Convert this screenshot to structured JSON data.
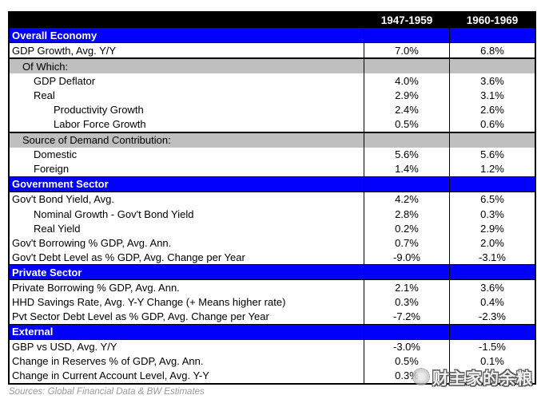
{
  "colors": {
    "column_header_bg": "#000000",
    "column_header_text": "#FFFFFF",
    "section_header_bg": "#0000FC",
    "section_header_text": "#FFFFFF",
    "subheader_bg": "#BFBFBF",
    "data_text": "#000000",
    "source_text": "#9A9A9A"
  },
  "source_note": "Sources: Global Financial Data & BW Estimates",
  "watermark": {
    "text": "财主家的余粮"
  },
  "chart_data": {
    "type": "table",
    "title": "",
    "columns": [
      "1947-1959",
      "1960-1969"
    ],
    "rows": [
      {
        "type": "section",
        "label": "Overall Economy",
        "indent": 0,
        "values": [
          "",
          ""
        ]
      },
      {
        "type": "data",
        "label": "GDP Growth, Avg. Y/Y",
        "indent": 0,
        "values": [
          "7.0%",
          "6.8%"
        ]
      },
      {
        "type": "subheader",
        "label": "Of Which:",
        "indent": 1,
        "values": [
          "",
          ""
        ],
        "thick_top": true
      },
      {
        "type": "data",
        "label": "GDP Deflator",
        "indent": 2,
        "values": [
          "4.0%",
          "3.6%"
        ]
      },
      {
        "type": "data",
        "label": "Real",
        "indent": 2,
        "values": [
          "2.9%",
          "3.1%"
        ]
      },
      {
        "type": "data",
        "label": "Productivity Growth",
        "indent": 3,
        "values": [
          "2.4%",
          "2.6%"
        ]
      },
      {
        "type": "data",
        "label": "Labor Force Growth",
        "indent": 3,
        "values": [
          "0.5%",
          "0.6%"
        ]
      },
      {
        "type": "subheader",
        "label": "Source of Demand Contribution:",
        "indent": 1,
        "values": [
          "",
          ""
        ],
        "thick_top": true
      },
      {
        "type": "data",
        "label": "Domestic",
        "indent": 2,
        "values": [
          "5.6%",
          "5.6%"
        ]
      },
      {
        "type": "data",
        "label": "Foreign",
        "indent": 2,
        "values": [
          "1.4%",
          "1.2%"
        ]
      },
      {
        "type": "section",
        "label": "Government Sector",
        "indent": 0,
        "values": [
          "",
          ""
        ]
      },
      {
        "type": "data",
        "label": "Gov't Bond Yield, Avg.",
        "indent": 0,
        "values": [
          "4.2%",
          "6.5%"
        ]
      },
      {
        "type": "data",
        "label": "Nominal Growth - Gov't Bond Yield",
        "indent": 2,
        "values": [
          "2.8%",
          "0.3%"
        ]
      },
      {
        "type": "data",
        "label": "Real Yield",
        "indent": 2,
        "values": [
          "0.2%",
          "2.9%"
        ]
      },
      {
        "type": "data",
        "label": "Gov't Borrowing % GDP, Avg. Ann.",
        "indent": 0,
        "values": [
          "0.7%",
          "2.0%"
        ]
      },
      {
        "type": "data",
        "label": "Gov't Debt Level as % GDP, Avg. Change per Year",
        "indent": 0,
        "values": [
          "-9.0%",
          "-3.1%"
        ]
      },
      {
        "type": "section",
        "label": "Private Sector",
        "indent": 0,
        "values": [
          "",
          ""
        ]
      },
      {
        "type": "data",
        "label": "Private Borrowing % GDP, Avg. Ann.",
        "indent": 0,
        "values": [
          "2.1%",
          "3.6%"
        ]
      },
      {
        "type": "data",
        "label": "HHD Savings Rate, Avg. Y-Y Change (+ Means higher rate)",
        "indent": 0,
        "values": [
          "0.3%",
          "0.4%"
        ]
      },
      {
        "type": "data",
        "label": "Pvt Sector Debt Level as % GDP, Avg. Change per Year",
        "indent": 0,
        "values": [
          "-7.2%",
          "-2.3%"
        ]
      },
      {
        "type": "section",
        "label": "External",
        "indent": 0,
        "values": [
          "",
          ""
        ]
      },
      {
        "type": "data",
        "label": "GBP vs USD, Avg. Y/Y",
        "indent": 0,
        "values": [
          "-3.0%",
          "-1.5%"
        ]
      },
      {
        "type": "data",
        "label": "Change in Reserves  % of GDP, Avg. Ann.",
        "indent": 0,
        "values": [
          "0.5%",
          "0.1%"
        ]
      },
      {
        "type": "data",
        "label": "Change in Current Account Level, Avg. Y-Y",
        "indent": 0,
        "values": [
          "0.3%",
          ""
        ]
      }
    ]
  }
}
